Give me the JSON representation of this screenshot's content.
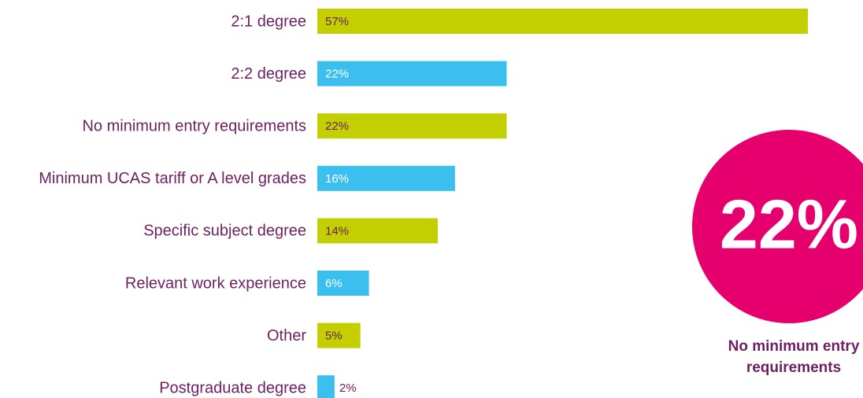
{
  "chart_data": {
    "type": "hbar",
    "categories": [
      "2:1 degree",
      "2:2 degree",
      "No minimum entry requirements",
      "Minimum UCAS tariff or A level grades",
      "Specific subject degree",
      "Relevant work experience",
      "Other",
      "Postgraduate degree"
    ],
    "values": [
      57,
      22,
      22,
      16,
      14,
      6,
      5,
      2
    ],
    "value_labels": [
      "57%",
      "22%",
      "22%",
      "16%",
      "14%",
      "6%",
      "5%",
      "2%"
    ],
    "colors": [
      "#c3cf00",
      "#3bbfee",
      "#c3cf00",
      "#3bbfee",
      "#c3cf00",
      "#3bbfee",
      "#c3cf00",
      "#3bbfee"
    ],
    "label_colors": [
      "#6a1d5c",
      "#ffffff",
      "#6a1d5c",
      "#ffffff",
      "#6a1d5c",
      "#ffffff",
      "#6a1d5c",
      "#6a1d5c"
    ],
    "annotation": {
      "label": "22%",
      "text": [
        "No minimum entry",
        "requirements"
      ],
      "color": "#e5006e"
    }
  }
}
